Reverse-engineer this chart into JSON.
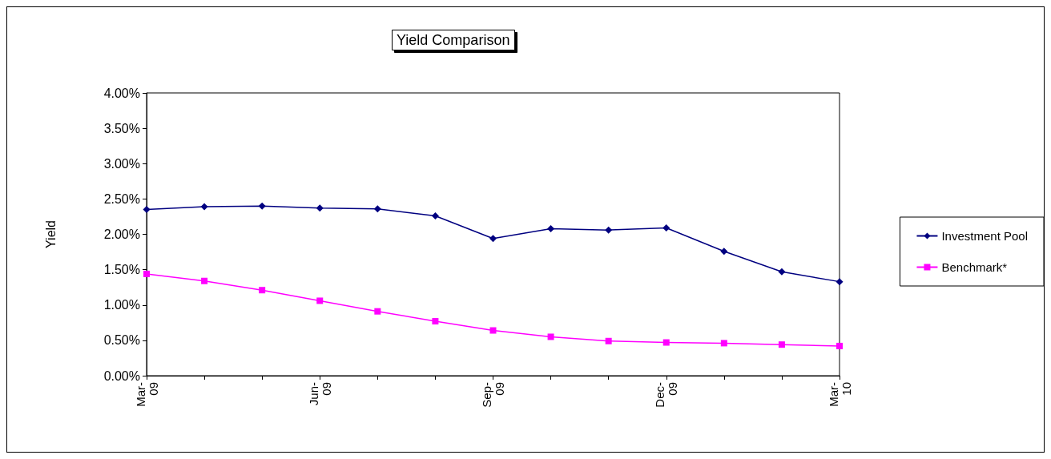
{
  "chart_data": {
    "type": "line",
    "title": "Yield Comparison",
    "ylabel": "Yield",
    "categories": [
      "Mar-09",
      null,
      null,
      "Jun-09",
      null,
      null,
      "Sep-09",
      null,
      null,
      "Dec-09",
      null,
      null,
      "Mar-10"
    ],
    "series": [
      {
        "name": "Investment Pool",
        "color": "#000080",
        "marker": "diamond",
        "values": [
          2.35,
          2.39,
          2.4,
          2.37,
          2.36,
          2.26,
          1.94,
          2.08,
          2.06,
          2.09,
          1.76,
          1.47,
          1.33
        ]
      },
      {
        "name": "Benchmark*",
        "color": "#ff00ff",
        "marker": "square",
        "values": [
          1.44,
          1.34,
          1.21,
          1.06,
          0.91,
          0.77,
          0.64,
          0.55,
          0.49,
          0.47,
          0.46,
          0.44,
          0.42
        ]
      }
    ],
    "ylim": [
      0,
      4
    ],
    "yticks": [
      {
        "value": 0,
        "label": "0.00%"
      },
      {
        "value": 0.5,
        "label": "0.50%"
      },
      {
        "value": 1,
        "label": "1.00%"
      },
      {
        "value": 1.5,
        "label": "1.50%"
      },
      {
        "value": 2,
        "label": "2.00%"
      },
      {
        "value": 2.5,
        "label": "2.50%"
      },
      {
        "value": 3,
        "label": "3.00%"
      },
      {
        "value": 3.5,
        "label": "3.50%"
      },
      {
        "value": 4,
        "label": "4.00%"
      }
    ],
    "grid": false,
    "legend": "right",
    "line_style": "solid"
  }
}
